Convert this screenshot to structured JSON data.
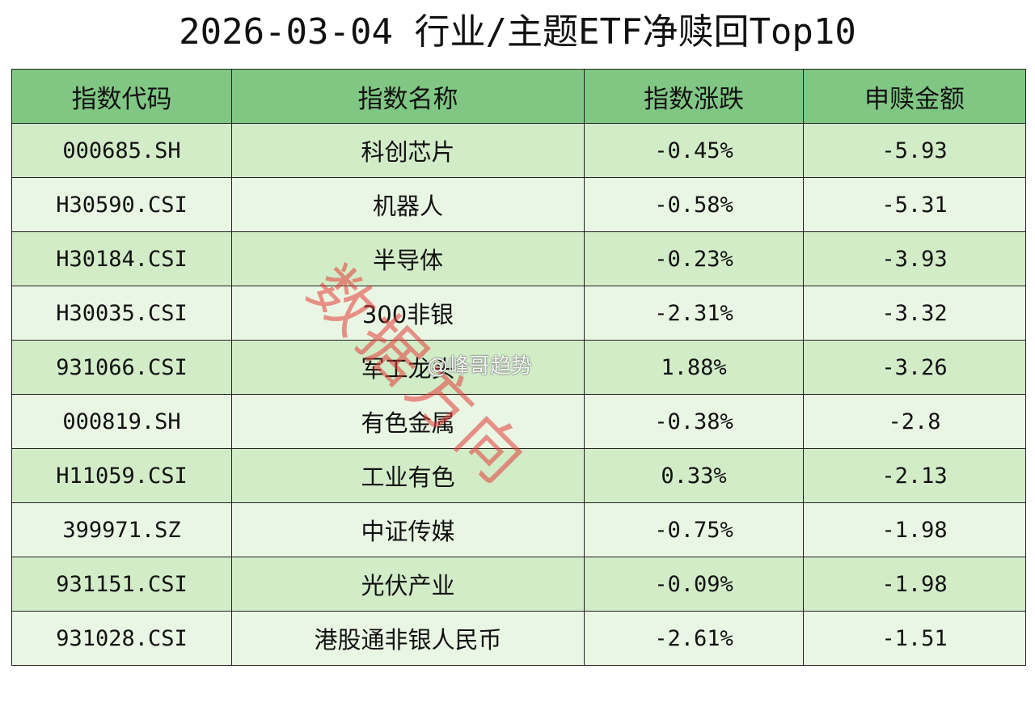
{
  "title": "2026-03-04 行业/主题ETF净赎回Top10",
  "table": {
    "headers": [
      "指数代码",
      "指数名称",
      "指数涨跌",
      "申赎金额"
    ],
    "rows": [
      {
        "code": "000685.SH",
        "name": "科创芯片",
        "change": "-0.45%",
        "amount": "-5.93"
      },
      {
        "code": "H30590.CSI",
        "name": "机器人",
        "change": "-0.58%",
        "amount": "-5.31"
      },
      {
        "code": "H30184.CSI",
        "name": "半导体",
        "change": "-0.23%",
        "amount": "-3.93"
      },
      {
        "code": "H30035.CSI",
        "name": "300非银",
        "change": "-2.31%",
        "amount": "-3.32"
      },
      {
        "code": "931066.CSI",
        "name": "军工龙头",
        "change": "1.88%",
        "amount": "-3.26"
      },
      {
        "code": "000819.SH",
        "name": "有色金属",
        "change": "-0.38%",
        "amount": "-2.8"
      },
      {
        "code": "H11059.CSI",
        "name": "工业有色",
        "change": "0.33%",
        "amount": "-2.13"
      },
      {
        "code": "399971.SZ",
        "name": "中证传媒",
        "change": "-0.75%",
        "amount": "-1.98"
      },
      {
        "code": "931151.CSI",
        "name": "光伏产业",
        "change": "-0.09%",
        "amount": "-1.98"
      },
      {
        "code": "931028.CSI",
        "name": "港股通非银人民币",
        "change": "-2.61%",
        "amount": "-1.51"
      }
    ]
  },
  "watermarks": {
    "stamp": "数据方向",
    "account": "@峰哥趋势"
  },
  "colors": {
    "header_bg": "#81c784",
    "row_odd_bg": "#d2ecc8",
    "row_even_bg": "#eaf6e4",
    "stamp": "#e13c37"
  }
}
